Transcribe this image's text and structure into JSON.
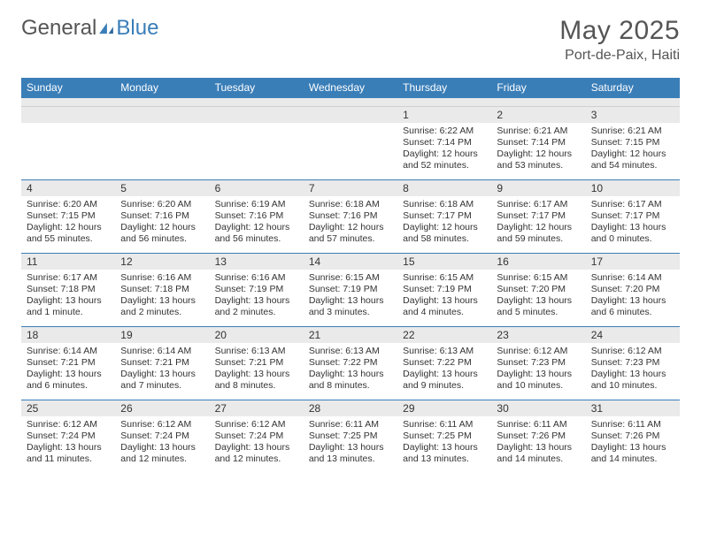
{
  "logo": {
    "part1": "General",
    "part2": "Blue"
  },
  "title": "May 2025",
  "location": "Port-de-Paix, Haiti",
  "colors": {
    "accent": "#3a7eb8",
    "band": "#eaeaea",
    "text": "#333333",
    "muted": "#555555",
    "white": "#ffffff"
  },
  "days_of_week": [
    "Sunday",
    "Monday",
    "Tuesday",
    "Wednesday",
    "Thursday",
    "Friday",
    "Saturday"
  ],
  "weeks": [
    [
      {},
      {},
      {},
      {},
      {
        "n": "1",
        "sunrise": "Sunrise: 6:22 AM",
        "sunset": "Sunset: 7:14 PM",
        "dl1": "Daylight: 12 hours",
        "dl2": "and 52 minutes."
      },
      {
        "n": "2",
        "sunrise": "Sunrise: 6:21 AM",
        "sunset": "Sunset: 7:14 PM",
        "dl1": "Daylight: 12 hours",
        "dl2": "and 53 minutes."
      },
      {
        "n": "3",
        "sunrise": "Sunrise: 6:21 AM",
        "sunset": "Sunset: 7:15 PM",
        "dl1": "Daylight: 12 hours",
        "dl2": "and 54 minutes."
      }
    ],
    [
      {
        "n": "4",
        "sunrise": "Sunrise: 6:20 AM",
        "sunset": "Sunset: 7:15 PM",
        "dl1": "Daylight: 12 hours",
        "dl2": "and 55 minutes."
      },
      {
        "n": "5",
        "sunrise": "Sunrise: 6:20 AM",
        "sunset": "Sunset: 7:16 PM",
        "dl1": "Daylight: 12 hours",
        "dl2": "and 56 minutes."
      },
      {
        "n": "6",
        "sunrise": "Sunrise: 6:19 AM",
        "sunset": "Sunset: 7:16 PM",
        "dl1": "Daylight: 12 hours",
        "dl2": "and 56 minutes."
      },
      {
        "n": "7",
        "sunrise": "Sunrise: 6:18 AM",
        "sunset": "Sunset: 7:16 PM",
        "dl1": "Daylight: 12 hours",
        "dl2": "and 57 minutes."
      },
      {
        "n": "8",
        "sunrise": "Sunrise: 6:18 AM",
        "sunset": "Sunset: 7:17 PM",
        "dl1": "Daylight: 12 hours",
        "dl2": "and 58 minutes."
      },
      {
        "n": "9",
        "sunrise": "Sunrise: 6:17 AM",
        "sunset": "Sunset: 7:17 PM",
        "dl1": "Daylight: 12 hours",
        "dl2": "and 59 minutes."
      },
      {
        "n": "10",
        "sunrise": "Sunrise: 6:17 AM",
        "sunset": "Sunset: 7:17 PM",
        "dl1": "Daylight: 13 hours",
        "dl2": "and 0 minutes."
      }
    ],
    [
      {
        "n": "11",
        "sunrise": "Sunrise: 6:17 AM",
        "sunset": "Sunset: 7:18 PM",
        "dl1": "Daylight: 13 hours",
        "dl2": "and 1 minute."
      },
      {
        "n": "12",
        "sunrise": "Sunrise: 6:16 AM",
        "sunset": "Sunset: 7:18 PM",
        "dl1": "Daylight: 13 hours",
        "dl2": "and 2 minutes."
      },
      {
        "n": "13",
        "sunrise": "Sunrise: 6:16 AM",
        "sunset": "Sunset: 7:19 PM",
        "dl1": "Daylight: 13 hours",
        "dl2": "and 2 minutes."
      },
      {
        "n": "14",
        "sunrise": "Sunrise: 6:15 AM",
        "sunset": "Sunset: 7:19 PM",
        "dl1": "Daylight: 13 hours",
        "dl2": "and 3 minutes."
      },
      {
        "n": "15",
        "sunrise": "Sunrise: 6:15 AM",
        "sunset": "Sunset: 7:19 PM",
        "dl1": "Daylight: 13 hours",
        "dl2": "and 4 minutes."
      },
      {
        "n": "16",
        "sunrise": "Sunrise: 6:15 AM",
        "sunset": "Sunset: 7:20 PM",
        "dl1": "Daylight: 13 hours",
        "dl2": "and 5 minutes."
      },
      {
        "n": "17",
        "sunrise": "Sunrise: 6:14 AM",
        "sunset": "Sunset: 7:20 PM",
        "dl1": "Daylight: 13 hours",
        "dl2": "and 6 minutes."
      }
    ],
    [
      {
        "n": "18",
        "sunrise": "Sunrise: 6:14 AM",
        "sunset": "Sunset: 7:21 PM",
        "dl1": "Daylight: 13 hours",
        "dl2": "and 6 minutes."
      },
      {
        "n": "19",
        "sunrise": "Sunrise: 6:14 AM",
        "sunset": "Sunset: 7:21 PM",
        "dl1": "Daylight: 13 hours",
        "dl2": "and 7 minutes."
      },
      {
        "n": "20",
        "sunrise": "Sunrise: 6:13 AM",
        "sunset": "Sunset: 7:21 PM",
        "dl1": "Daylight: 13 hours",
        "dl2": "and 8 minutes."
      },
      {
        "n": "21",
        "sunrise": "Sunrise: 6:13 AM",
        "sunset": "Sunset: 7:22 PM",
        "dl1": "Daylight: 13 hours",
        "dl2": "and 8 minutes."
      },
      {
        "n": "22",
        "sunrise": "Sunrise: 6:13 AM",
        "sunset": "Sunset: 7:22 PM",
        "dl1": "Daylight: 13 hours",
        "dl2": "and 9 minutes."
      },
      {
        "n": "23",
        "sunrise": "Sunrise: 6:12 AM",
        "sunset": "Sunset: 7:23 PM",
        "dl1": "Daylight: 13 hours",
        "dl2": "and 10 minutes."
      },
      {
        "n": "24",
        "sunrise": "Sunrise: 6:12 AM",
        "sunset": "Sunset: 7:23 PM",
        "dl1": "Daylight: 13 hours",
        "dl2": "and 10 minutes."
      }
    ],
    [
      {
        "n": "25",
        "sunrise": "Sunrise: 6:12 AM",
        "sunset": "Sunset: 7:24 PM",
        "dl1": "Daylight: 13 hours",
        "dl2": "and 11 minutes."
      },
      {
        "n": "26",
        "sunrise": "Sunrise: 6:12 AM",
        "sunset": "Sunset: 7:24 PM",
        "dl1": "Daylight: 13 hours",
        "dl2": "and 12 minutes."
      },
      {
        "n": "27",
        "sunrise": "Sunrise: 6:12 AM",
        "sunset": "Sunset: 7:24 PM",
        "dl1": "Daylight: 13 hours",
        "dl2": "and 12 minutes."
      },
      {
        "n": "28",
        "sunrise": "Sunrise: 6:11 AM",
        "sunset": "Sunset: 7:25 PM",
        "dl1": "Daylight: 13 hours",
        "dl2": "and 13 minutes."
      },
      {
        "n": "29",
        "sunrise": "Sunrise: 6:11 AM",
        "sunset": "Sunset: 7:25 PM",
        "dl1": "Daylight: 13 hours",
        "dl2": "and 13 minutes."
      },
      {
        "n": "30",
        "sunrise": "Sunrise: 6:11 AM",
        "sunset": "Sunset: 7:26 PM",
        "dl1": "Daylight: 13 hours",
        "dl2": "and 14 minutes."
      },
      {
        "n": "31",
        "sunrise": "Sunrise: 6:11 AM",
        "sunset": "Sunset: 7:26 PM",
        "dl1": "Daylight: 13 hours",
        "dl2": "and 14 minutes."
      }
    ]
  ]
}
